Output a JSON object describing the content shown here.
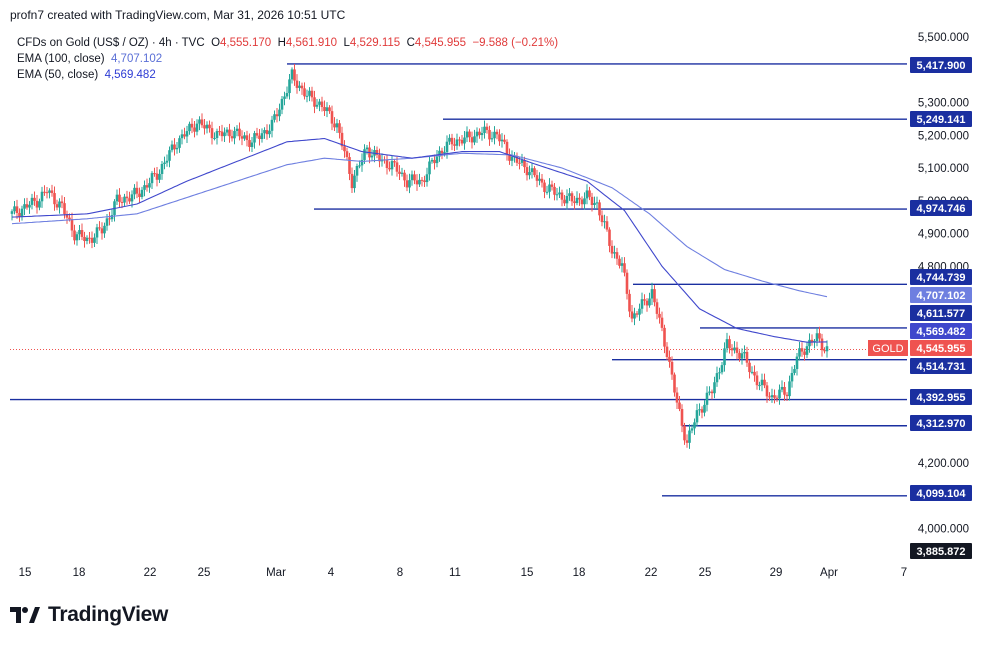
{
  "header": {
    "attribution": "profn7 created with TradingView.com, Mar 31, 2026 10:51 UTC"
  },
  "legend": {
    "symbol": "CFDs on Gold (US$ / OZ) · 4h · TVC",
    "o_label": "O",
    "o_value": "4,555.170",
    "h_label": "H",
    "h_value": "4,561.910",
    "l_label": "L",
    "l_value": "4,529.115",
    "c_label": "C",
    "c_value": "4,545.955",
    "change": "−9.588 (−0.21%)",
    "ema100_label": "EMA (100, close)",
    "ema100_value": "4,707.102",
    "ema50_label": "EMA (50, close)",
    "ema50_value": "4,569.482"
  },
  "footer": {
    "brand": "TradingView"
  },
  "colors": {
    "up": "#26a69a",
    "down": "#ef5350",
    "level": "#1a2fa0",
    "ema50": "#3f47cc",
    "ema100": "#6e7fe0",
    "price_tag": "#ef5350",
    "dark_tag": "#131722"
  },
  "chart_data": {
    "type": "candlestick",
    "symbol": "GOLD",
    "timeframe": "4h",
    "y_range": [
      3885.872,
      5500
    ],
    "y_ticks": [
      "5,500.000",
      "5,300.000",
      "5,200.000",
      "5,100.000",
      "5,000.000",
      "4,900.000",
      "4,800.000",
      "4,200.000",
      "4,000.000"
    ],
    "x_ticks": [
      "15",
      "18",
      "22",
      "25",
      "Mar",
      "4",
      "8",
      "11",
      "15",
      "18",
      "22",
      "25",
      "29",
      "Apr",
      "7"
    ],
    "horizontal_levels": [
      5417.9,
      5249.141,
      4974.746,
      4744.739,
      4611.577,
      4514.731,
      4392.955,
      4312.97,
      4099.104
    ],
    "price_tags": [
      {
        "text": "5,417.900",
        "value": 5417.9,
        "style": "level"
      },
      {
        "text": "5,249.141",
        "value": 5249.141,
        "style": "level"
      },
      {
        "text": "4,974.746",
        "value": 4974.746,
        "style": "level"
      },
      {
        "text": "4,744.739",
        "value": 4744.739,
        "style": "level"
      },
      {
        "text": "4,707.102",
        "value": 4707.102,
        "style": "ema100"
      },
      {
        "text": "4,611.577",
        "value": 4611.577,
        "style": "level"
      },
      {
        "text": "4,569.482",
        "value": 4569.482,
        "style": "ema50"
      },
      {
        "text": "4,545.955",
        "value": 4545.955,
        "style": "price",
        "prefix": "GOLD"
      },
      {
        "text": "4,514.731",
        "value": 4514.731,
        "style": "level"
      },
      {
        "text": "4,392.955",
        "value": 4392.955,
        "style": "level"
      },
      {
        "text": "4,312.970",
        "value": 4312.97,
        "style": "level"
      },
      {
        "text": "4,099.104",
        "value": 4099.104,
        "style": "level"
      },
      {
        "text": "3,885.872",
        "value": 3885.872,
        "style": "dark"
      }
    ],
    "last_price": 4545.955,
    "close_path": [
      [
        0,
        4960
      ],
      [
        10,
        5000
      ],
      [
        14,
        5030
      ],
      [
        20,
        4980
      ],
      [
        25,
        4900
      ],
      [
        30,
        4880
      ],
      [
        36,
        4910
      ],
      [
        42,
        5000
      ],
      [
        50,
        5020
      ],
      [
        58,
        5080
      ],
      [
        66,
        5180
      ],
      [
        74,
        5240
      ],
      [
        82,
        5200
      ],
      [
        88,
        5210
      ],
      [
        96,
        5180
      ],
      [
        104,
        5230
      ],
      [
        112,
        5380
      ],
      [
        118,
        5320
      ],
      [
        124,
        5290
      ],
      [
        130,
        5230
      ],
      [
        136,
        5060
      ],
      [
        142,
        5160
      ],
      [
        148,
        5120
      ],
      [
        152,
        5110
      ],
      [
        158,
        5060
      ],
      [
        164,
        5060
      ],
      [
        170,
        5140
      ],
      [
        176,
        5180
      ],
      [
        182,
        5190
      ],
      [
        188,
        5210
      ],
      [
        194,
        5200
      ],
      [
        200,
        5130
      ],
      [
        206,
        5100
      ],
      [
        212,
        5050
      ],
      [
        218,
        5020
      ],
      [
        224,
        5000
      ],
      [
        230,
        5010
      ],
      [
        234,
        4990
      ],
      [
        240,
        4850
      ],
      [
        244,
        4800
      ],
      [
        248,
        4640
      ],
      [
        252,
        4680
      ],
      [
        256,
        4720
      ],
      [
        262,
        4540
      ],
      [
        266,
        4380
      ],
      [
        270,
        4260
      ],
      [
        274,
        4350
      ],
      [
        280,
        4420
      ],
      [
        286,
        4560
      ],
      [
        292,
        4530
      ],
      [
        298,
        4450
      ],
      [
        304,
        4400
      ],
      [
        310,
        4420
      ],
      [
        314,
        4520
      ],
      [
        318,
        4560
      ],
      [
        322,
        4580
      ],
      [
        326,
        4545
      ]
    ],
    "ema50_path": [
      [
        0,
        4950
      ],
      [
        30,
        4960
      ],
      [
        50,
        4990
      ],
      [
        70,
        5060
      ],
      [
        90,
        5120
      ],
      [
        110,
        5180
      ],
      [
        125,
        5190
      ],
      [
        140,
        5150
      ],
      [
        160,
        5130
      ],
      [
        180,
        5150
      ],
      [
        195,
        5150
      ],
      [
        210,
        5110
      ],
      [
        230,
        5060
      ],
      [
        245,
        4970
      ],
      [
        260,
        4800
      ],
      [
        275,
        4670
      ],
      [
        290,
        4610
      ],
      [
        305,
        4585
      ],
      [
        318,
        4568
      ],
      [
        326,
        4569
      ]
    ],
    "ema100_path": [
      [
        0,
        4930
      ],
      [
        30,
        4945
      ],
      [
        50,
        4960
      ],
      [
        70,
        5010
      ],
      [
        90,
        5060
      ],
      [
        110,
        5110
      ],
      [
        125,
        5130
      ],
      [
        140,
        5120
      ],
      [
        160,
        5130
      ],
      [
        180,
        5145
      ],
      [
        200,
        5140
      ],
      [
        220,
        5100
      ],
      [
        240,
        5040
      ],
      [
        255,
        4960
      ],
      [
        270,
        4860
      ],
      [
        285,
        4790
      ],
      [
        300,
        4755
      ],
      [
        315,
        4725
      ],
      [
        326,
        4707
      ]
    ]
  }
}
